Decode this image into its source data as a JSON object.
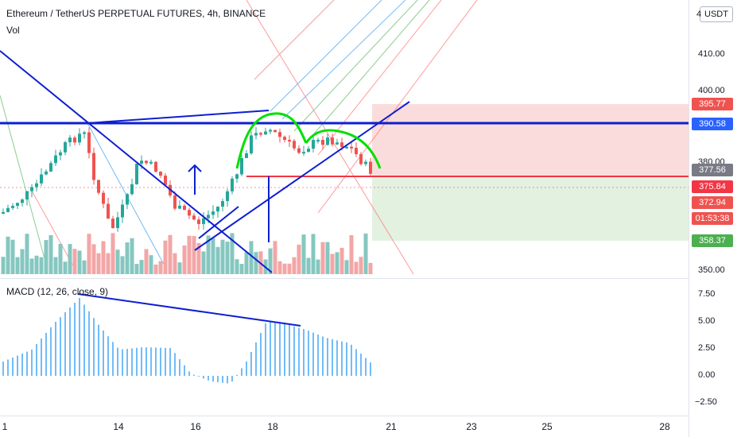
{
  "header": {
    "title": "Ethereum / TetherUS PERPETUAL FUTURES, 4h, BINANCE",
    "volume_label": "Vol",
    "currency": "USDT"
  },
  "macd": {
    "label": "MACD (12, 26, close, 9)"
  },
  "price_axis": {
    "ticks": [
      "410.00",
      "400.00",
      "380.00",
      "350.00"
    ],
    "top_partial": "4"
  },
  "macd_axis": {
    "ticks": [
      "7.50",
      "5.00",
      "2.50",
      "0.00",
      "−2.50"
    ]
  },
  "price_tags": [
    {
      "text": "395.77",
      "color": "#ef5350"
    },
    {
      "text": "390.58",
      "color": "#2962ff"
    },
    {
      "text": "377.56",
      "color": "#787b86"
    },
    {
      "text": "375.84",
      "color": "#f23645"
    },
    {
      "text": "372.94",
      "color": "#ef5350"
    },
    {
      "text": "01:53:38",
      "color": "#ef5350"
    },
    {
      "text": "358.37",
      "color": "#4caf50"
    }
  ],
  "x_axis": {
    "labels": [
      "1",
      "14",
      "16",
      "18",
      "21",
      "23",
      "25",
      "28"
    ]
  },
  "colors": {
    "up": "#26a69a",
    "down": "#ef5350",
    "vol_up": "#85c7c0",
    "vol_down": "#f3a6a6",
    "trend": "#0d1fd1",
    "pattern": "#00e000",
    "macd_hist": "#42a5f5",
    "loss_zone": "#f9d3d3",
    "profit_zone": "#dcedd9"
  }
}
